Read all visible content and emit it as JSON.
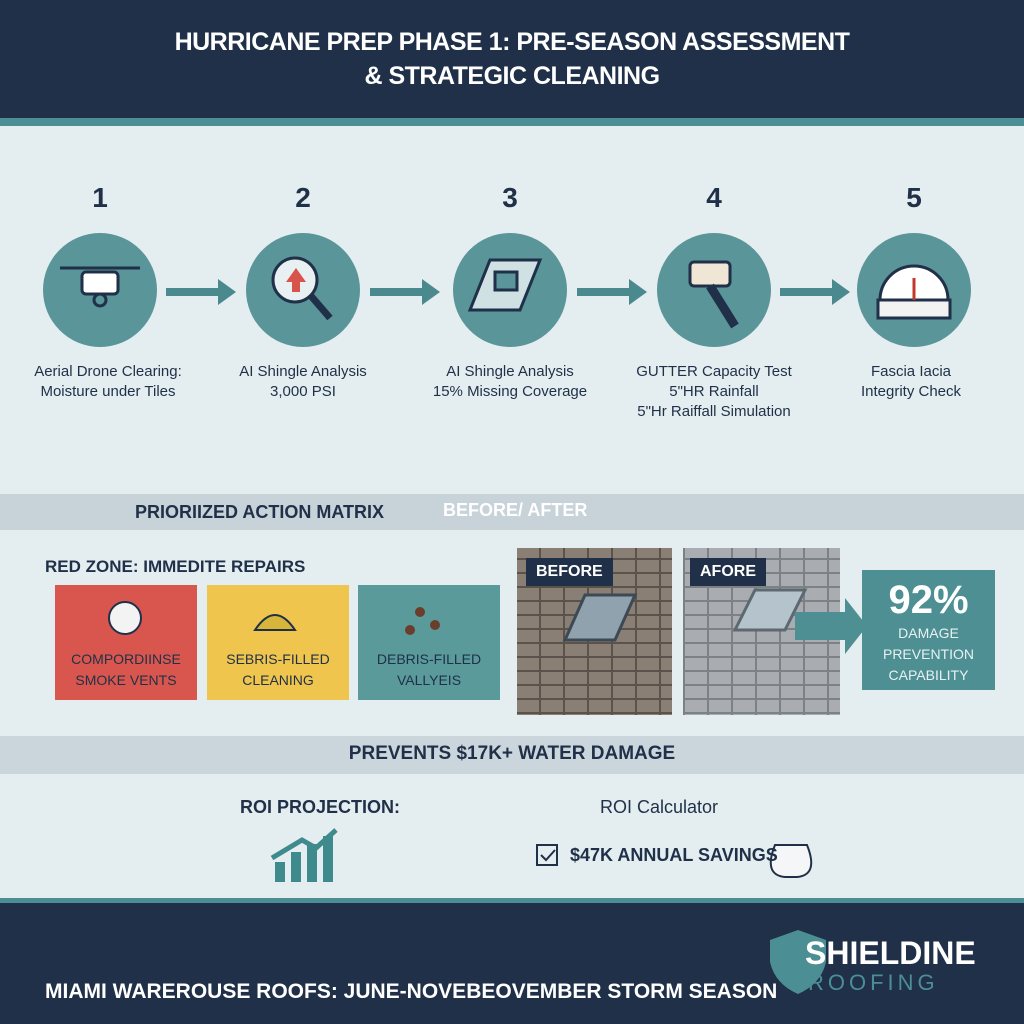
{
  "header": {
    "title_lines": [
      "HURRICANE PREP PHASE 1: PRE-SEASON ASSESSMENT",
      "& STRATEGIC CLEANING"
    ]
  },
  "steps": [
    {
      "number": 1,
      "lines": [
        "Aerial Drone Clearing:",
        "Moisture under Tiles"
      ]
    },
    {
      "number": 2,
      "lines": [
        "AI Shingle Analysis",
        "3,000 PSI"
      ]
    },
    {
      "number": 3,
      "lines": [
        "AI Shingle Analysis",
        "15% Missing Coverage"
      ]
    },
    {
      "number": 4,
      "lines": [
        "GUTTER Capacity Test",
        "5\"HR Rainfall",
        "5\"Hr Raiffall Simulation"
      ]
    },
    {
      "number": 5,
      "lines": [
        "Fascia Iacia",
        "Integrity Check"
      ]
    }
  ],
  "matrix": {
    "title": "PRIORIIZED ACTION MATRIX",
    "before_after": "BEFORE/ AFTER",
    "zone": "RED ZONE: IMMEDITE REPAIRS",
    "cards": [
      {
        "lines": [
          "COMPORDIINSE",
          "SMOKE VENTS"
        ]
      },
      {
        "lines": [
          "SEBRIS-FILLED",
          "CLEANING"
        ]
      },
      {
        "lines": [
          "DEBRIS-FILLED",
          "VALLYEIS"
        ]
      }
    ],
    "photos": [
      "BEFORE",
      "AFORE"
    ],
    "stat": {
      "value": "92%",
      "lines": [
        "DAMAGE",
        "PREVENTION",
        "CAPABILITY"
      ]
    }
  },
  "banner": "PREVENTS $17K+ WATER DAMAGE",
  "roi": {
    "projection": "ROI PROJECTION:",
    "calculator": "ROI Calculator",
    "savings": "$47K ANNUAL SAVINGS"
  },
  "footer": {
    "text": "MIAMI WAREROUSE ROOFS: JUNE-NOVEBEOVEMBER STORM SEASON",
    "brand": "SHIELDINE",
    "brand_sub": "ROOFING"
  }
}
